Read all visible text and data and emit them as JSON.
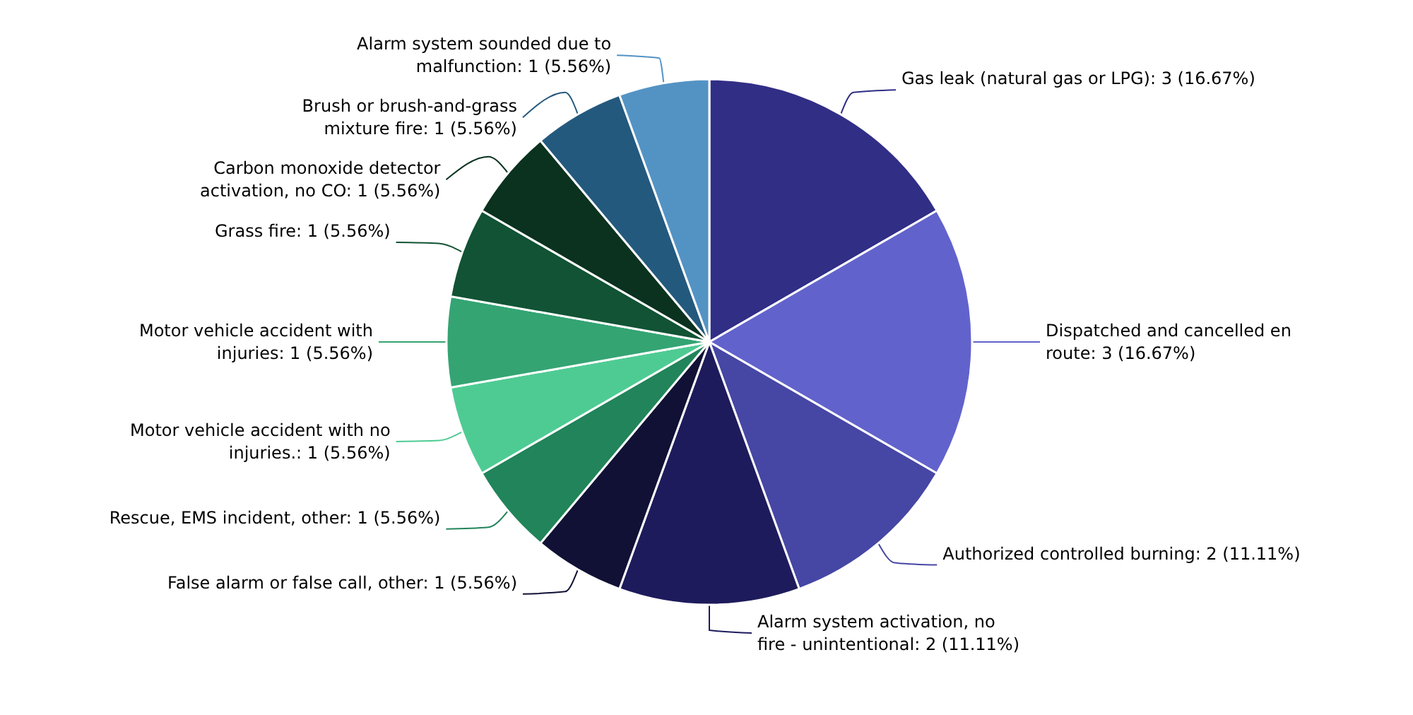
{
  "chart_data": {
    "type": "pie",
    "categories": [
      "Gas leak (natural gas or LPG)",
      "Dispatched and cancelled en route",
      "Authorized controlled burning",
      "Alarm system activation, no fire - unintentional",
      "False alarm or false call, other",
      "Rescue, EMS incident, other",
      "Motor vehicle accident with no injuries.",
      "Motor vehicle accident with injuries",
      "Grass fire",
      "Carbon monoxide detector activation, no CO",
      "Brush or brush-and-grass mixture fire",
      "Alarm system sounded due to malfunction"
    ],
    "values": [
      3,
      3,
      2,
      2,
      1,
      1,
      1,
      1,
      1,
      1,
      1,
      1
    ],
    "value_labels": [
      "3 (16.67%)",
      "3 (16.67%)",
      "2 (11.11%)",
      "2 (11.11%)",
      "1 (5.56%)",
      "1 (5.56%)",
      "1 (5.56%)",
      "1 (5.56%)",
      "1 (5.56%)",
      "1 (5.56%)",
      "1 (5.56%)",
      "1 (5.56%)"
    ],
    "colors": [
      "#312e86",
      "#6262cc",
      "#4646a4",
      "#1e1b5c",
      "#111135",
      "#21845a",
      "#4ecb93",
      "#34a473",
      "#115334",
      "#0a321f",
      "#24597e",
      "#5393c4"
    ]
  }
}
